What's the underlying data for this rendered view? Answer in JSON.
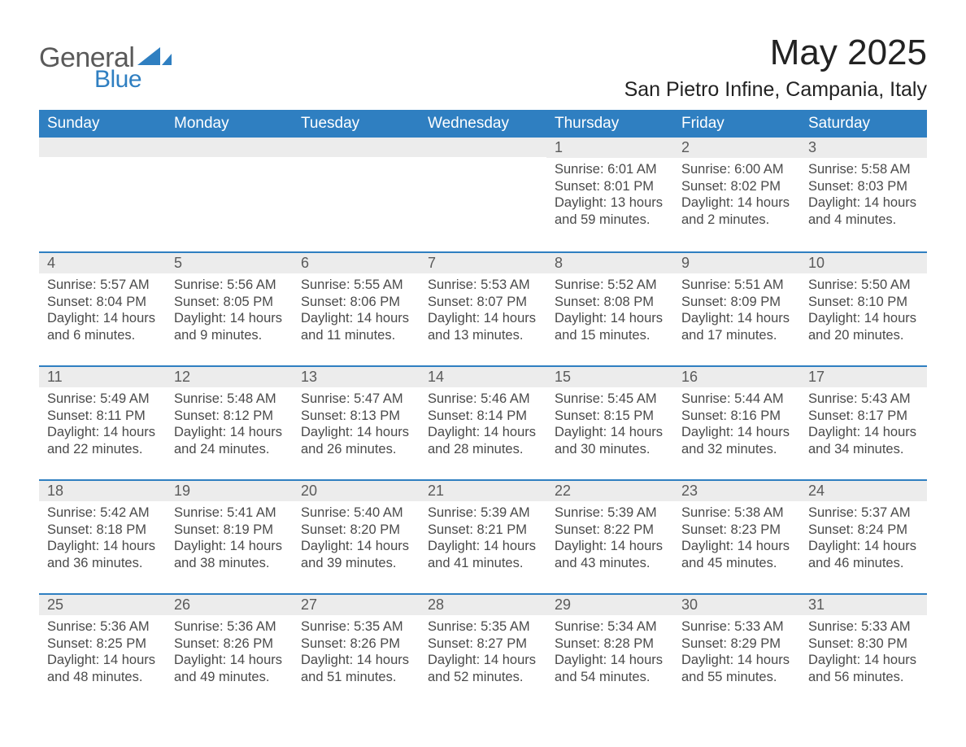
{
  "logo": {
    "text_general": "General",
    "text_blue": "Blue",
    "shape_color": "#2f7fc1"
  },
  "title": "May 2025",
  "location": "San Pietro Infine, Campania, Italy",
  "colors": {
    "header_bg": "#2f7fc1",
    "header_text": "#ffffff",
    "day_bar_bg": "#ececec",
    "day_bar_text": "#5a5a5a",
    "body_text": "#4a4a4a",
    "row_divider": "#2f7fc1",
    "page_bg": "#ffffff"
  },
  "typography": {
    "title_fontsize": 44,
    "location_fontsize": 25,
    "header_fontsize": 19,
    "daynum_fontsize": 18,
    "content_fontsize": 16.5,
    "font_family": "Arial"
  },
  "columns": [
    "Sunday",
    "Monday",
    "Tuesday",
    "Wednesday",
    "Thursday",
    "Friday",
    "Saturday"
  ],
  "weeks": [
    [
      null,
      null,
      null,
      null,
      {
        "n": "1",
        "sunrise": "Sunrise: 6:01 AM",
        "sunset": "Sunset: 8:01 PM",
        "daylight": "Daylight: 13 hours and 59 minutes."
      },
      {
        "n": "2",
        "sunrise": "Sunrise: 6:00 AM",
        "sunset": "Sunset: 8:02 PM",
        "daylight": "Daylight: 14 hours and 2 minutes."
      },
      {
        "n": "3",
        "sunrise": "Sunrise: 5:58 AM",
        "sunset": "Sunset: 8:03 PM",
        "daylight": "Daylight: 14 hours and 4 minutes."
      }
    ],
    [
      {
        "n": "4",
        "sunrise": "Sunrise: 5:57 AM",
        "sunset": "Sunset: 8:04 PM",
        "daylight": "Daylight: 14 hours and 6 minutes."
      },
      {
        "n": "5",
        "sunrise": "Sunrise: 5:56 AM",
        "sunset": "Sunset: 8:05 PM",
        "daylight": "Daylight: 14 hours and 9 minutes."
      },
      {
        "n": "6",
        "sunrise": "Sunrise: 5:55 AM",
        "sunset": "Sunset: 8:06 PM",
        "daylight": "Daylight: 14 hours and 11 minutes."
      },
      {
        "n": "7",
        "sunrise": "Sunrise: 5:53 AM",
        "sunset": "Sunset: 8:07 PM",
        "daylight": "Daylight: 14 hours and 13 minutes."
      },
      {
        "n": "8",
        "sunrise": "Sunrise: 5:52 AM",
        "sunset": "Sunset: 8:08 PM",
        "daylight": "Daylight: 14 hours and 15 minutes."
      },
      {
        "n": "9",
        "sunrise": "Sunrise: 5:51 AM",
        "sunset": "Sunset: 8:09 PM",
        "daylight": "Daylight: 14 hours and 17 minutes."
      },
      {
        "n": "10",
        "sunrise": "Sunrise: 5:50 AM",
        "sunset": "Sunset: 8:10 PM",
        "daylight": "Daylight: 14 hours and 20 minutes."
      }
    ],
    [
      {
        "n": "11",
        "sunrise": "Sunrise: 5:49 AM",
        "sunset": "Sunset: 8:11 PM",
        "daylight": "Daylight: 14 hours and 22 minutes."
      },
      {
        "n": "12",
        "sunrise": "Sunrise: 5:48 AM",
        "sunset": "Sunset: 8:12 PM",
        "daylight": "Daylight: 14 hours and 24 minutes."
      },
      {
        "n": "13",
        "sunrise": "Sunrise: 5:47 AM",
        "sunset": "Sunset: 8:13 PM",
        "daylight": "Daylight: 14 hours and 26 minutes."
      },
      {
        "n": "14",
        "sunrise": "Sunrise: 5:46 AM",
        "sunset": "Sunset: 8:14 PM",
        "daylight": "Daylight: 14 hours and 28 minutes."
      },
      {
        "n": "15",
        "sunrise": "Sunrise: 5:45 AM",
        "sunset": "Sunset: 8:15 PM",
        "daylight": "Daylight: 14 hours and 30 minutes."
      },
      {
        "n": "16",
        "sunrise": "Sunrise: 5:44 AM",
        "sunset": "Sunset: 8:16 PM",
        "daylight": "Daylight: 14 hours and 32 minutes."
      },
      {
        "n": "17",
        "sunrise": "Sunrise: 5:43 AM",
        "sunset": "Sunset: 8:17 PM",
        "daylight": "Daylight: 14 hours and 34 minutes."
      }
    ],
    [
      {
        "n": "18",
        "sunrise": "Sunrise: 5:42 AM",
        "sunset": "Sunset: 8:18 PM",
        "daylight": "Daylight: 14 hours and 36 minutes."
      },
      {
        "n": "19",
        "sunrise": "Sunrise: 5:41 AM",
        "sunset": "Sunset: 8:19 PM",
        "daylight": "Daylight: 14 hours and 38 minutes."
      },
      {
        "n": "20",
        "sunrise": "Sunrise: 5:40 AM",
        "sunset": "Sunset: 8:20 PM",
        "daylight": "Daylight: 14 hours and 39 minutes."
      },
      {
        "n": "21",
        "sunrise": "Sunrise: 5:39 AM",
        "sunset": "Sunset: 8:21 PM",
        "daylight": "Daylight: 14 hours and 41 minutes."
      },
      {
        "n": "22",
        "sunrise": "Sunrise: 5:39 AM",
        "sunset": "Sunset: 8:22 PM",
        "daylight": "Daylight: 14 hours and 43 minutes."
      },
      {
        "n": "23",
        "sunrise": "Sunrise: 5:38 AM",
        "sunset": "Sunset: 8:23 PM",
        "daylight": "Daylight: 14 hours and 45 minutes."
      },
      {
        "n": "24",
        "sunrise": "Sunrise: 5:37 AM",
        "sunset": "Sunset: 8:24 PM",
        "daylight": "Daylight: 14 hours and 46 minutes."
      }
    ],
    [
      {
        "n": "25",
        "sunrise": "Sunrise: 5:36 AM",
        "sunset": "Sunset: 8:25 PM",
        "daylight": "Daylight: 14 hours and 48 minutes."
      },
      {
        "n": "26",
        "sunrise": "Sunrise: 5:36 AM",
        "sunset": "Sunset: 8:26 PM",
        "daylight": "Daylight: 14 hours and 49 minutes."
      },
      {
        "n": "27",
        "sunrise": "Sunrise: 5:35 AM",
        "sunset": "Sunset: 8:26 PM",
        "daylight": "Daylight: 14 hours and 51 minutes."
      },
      {
        "n": "28",
        "sunrise": "Sunrise: 5:35 AM",
        "sunset": "Sunset: 8:27 PM",
        "daylight": "Daylight: 14 hours and 52 minutes."
      },
      {
        "n": "29",
        "sunrise": "Sunrise: 5:34 AM",
        "sunset": "Sunset: 8:28 PM",
        "daylight": "Daylight: 14 hours and 54 minutes."
      },
      {
        "n": "30",
        "sunrise": "Sunrise: 5:33 AM",
        "sunset": "Sunset: 8:29 PM",
        "daylight": "Daylight: 14 hours and 55 minutes."
      },
      {
        "n": "31",
        "sunrise": "Sunrise: 5:33 AM",
        "sunset": "Sunset: 8:30 PM",
        "daylight": "Daylight: 14 hours and 56 minutes."
      }
    ]
  ]
}
